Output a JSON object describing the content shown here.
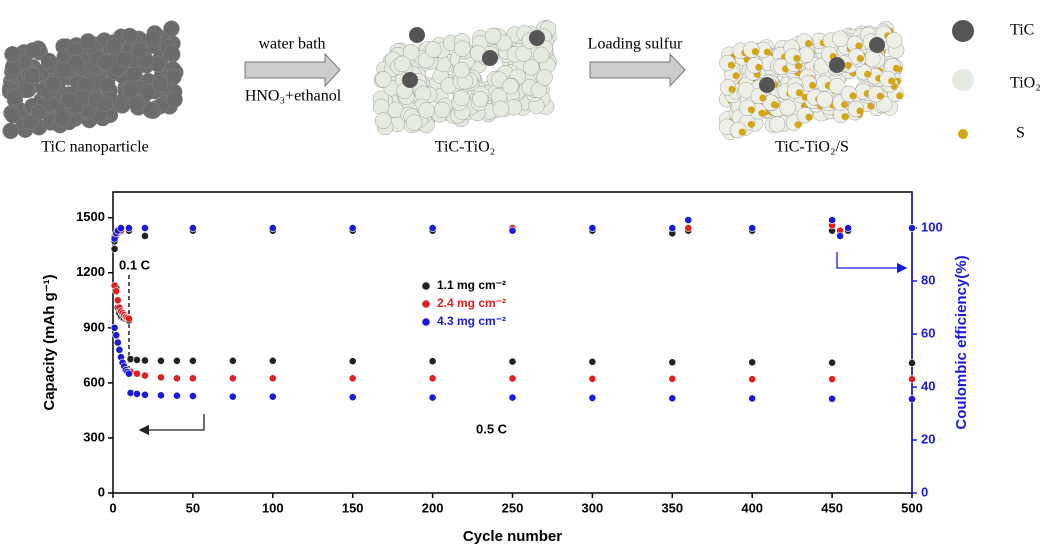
{
  "schematic": {
    "stages": [
      "TiC nanoparticle",
      "TiC-TiO₂",
      "TiC-TiO₂/S"
    ],
    "steps": [
      {
        "top": "water bath",
        "bottom": "HNO₃+ethanol"
      },
      {
        "top": "Loading sulfur"
      }
    ],
    "legend": [
      "TiC",
      "TiO₂",
      "S"
    ]
  },
  "chart_data": {
    "type": "scatter",
    "xlabel": "Cycle number",
    "ylabel": "Capacity (mAh g⁻¹)",
    "y2label": "Coulombic efficiency(%)",
    "annotations": [
      "0.1 C",
      "0.5 C"
    ],
    "xlim": [
      0,
      500
    ],
    "xticks": [
      0,
      50,
      100,
      150,
      200,
      250,
      300,
      350,
      400,
      450,
      500
    ],
    "ylim": [
      0,
      1640
    ],
    "yticks": [
      0,
      300,
      600,
      900,
      1200,
      1500
    ],
    "y2lim": [
      0,
      113.6
    ],
    "y2ticks": [
      0,
      20,
      40,
      60,
      80,
      100
    ],
    "y2color": "#1a1add",
    "series": [
      {
        "name": "1.1 mg cm⁻²",
        "color": "#222222",
        "x": [
          1,
          2,
          3,
          4,
          5,
          6,
          7,
          8,
          9,
          10,
          11,
          15,
          20,
          30,
          40,
          50,
          75,
          100,
          150,
          200,
          250,
          300,
          350,
          400,
          450,
          500
        ],
        "values": [
          1330,
          1120,
          1010,
          980,
          960,
          955,
          950,
          948,
          945,
          940,
          730,
          725,
          722,
          720,
          720,
          720,
          720,
          720,
          718,
          718,
          716,
          715,
          712,
          712,
          710,
          708
        ]
      },
      {
        "name": "2.4 mg cm⁻²",
        "color": "#e02020",
        "x": [
          1,
          2,
          3,
          4,
          5,
          6,
          7,
          8,
          9,
          10,
          11,
          15,
          20,
          30,
          40,
          50,
          75,
          100,
          150,
          200,
          250,
          300,
          350,
          400,
          450,
          500
        ],
        "values": [
          1130,
          1100,
          1050,
          1010,
          990,
          980,
          970,
          960,
          955,
          950,
          660,
          650,
          640,
          630,
          625,
          625,
          625,
          625,
          625,
          625,
          624,
          622,
          622,
          620,
          620,
          620
        ]
      },
      {
        "name": "4.3 mg cm⁻²",
        "color": "#1a1add",
        "x": [
          1,
          2,
          3,
          4,
          5,
          6,
          7,
          8,
          9,
          10,
          11,
          15,
          20,
          30,
          40,
          50,
          75,
          100,
          150,
          200,
          250,
          300,
          350,
          400,
          450,
          500
        ],
        "values": [
          900,
          860,
          820,
          780,
          740,
          710,
          690,
          670,
          660,
          650,
          545,
          540,
          535,
          532,
          530,
          528,
          525,
          525,
          522,
          520,
          520,
          518,
          516,
          515,
          513,
          512
        ]
      },
      {
        "color": "#222222",
        "axis": "y2",
        "x": [
          1,
          2,
          3,
          5,
          10,
          20,
          50,
          100,
          150,
          200,
          250,
          300,
          350,
          360,
          400,
          450,
          455,
          460,
          500
        ],
        "values": [
          95,
          97,
          98,
          99,
          99,
          97,
          99,
          99,
          99,
          99,
          99,
          99,
          98,
          99,
          99,
          99,
          99,
          99,
          100
        ]
      },
      {
        "color": "#e02020",
        "axis": "y2",
        "x": [
          1,
          2,
          3,
          5,
          10,
          20,
          50,
          100,
          150,
          200,
          250,
          300,
          350,
          360,
          400,
          450,
          455,
          460,
          500
        ],
        "values": [
          97,
          98,
          99,
          99,
          100,
          100,
          100,
          100,
          100,
          100,
          100,
          100,
          100,
          100,
          100,
          101,
          99,
          100,
          100
        ]
      },
      {
        "color": "#1a1add",
        "axis": "y2",
        "x": [
          1,
          2,
          3,
          5,
          10,
          20,
          50,
          100,
          150,
          200,
          250,
          300,
          350,
          360,
          400,
          450,
          455,
          460,
          500
        ],
        "values": [
          96,
          98,
          99,
          100,
          100,
          100,
          100,
          100,
          100,
          100,
          99,
          100,
          100,
          103,
          100,
          103,
          97,
          100,
          100
        ]
      }
    ]
  }
}
